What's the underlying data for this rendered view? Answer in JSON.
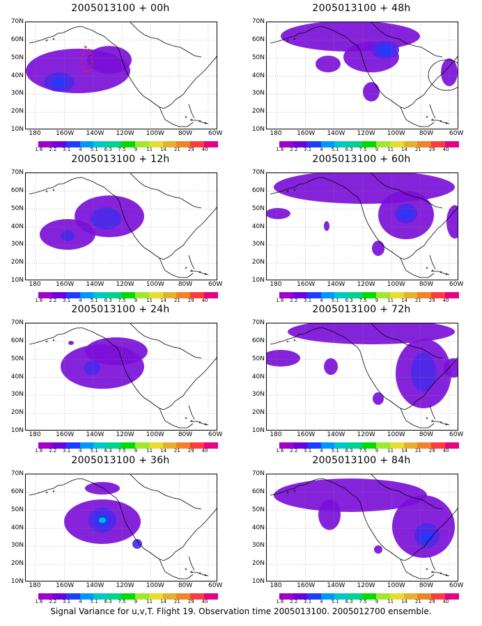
{
  "caption": "Signal Variance for u,v,T. Flight 19. Observation time 2005013100. 2005012700 ensemble.",
  "lat_labels": [
    "70N",
    "60N",
    "50N",
    "40N",
    "30N",
    "20N",
    "10N"
  ],
  "lon_labels": [
    "180",
    "160W",
    "140W",
    "120W",
    "100W",
    "80W",
    "60W"
  ],
  "colorbar": {
    "levels": [
      "1.6",
      "2.2",
      "3.1",
      "4",
      "5.1",
      "6.3",
      "7.5",
      "9",
      "11",
      "14",
      "21",
      "29",
      "40"
    ],
    "colors": [
      "#a000c8",
      "#6e00dc",
      "#1e3cff",
      "#0096ff",
      "#00c8c8",
      "#00d28c",
      "#00dc00",
      "#a0e632",
      "#e6dc32",
      "#e6af2d",
      "#f08228",
      "#fa3c3c",
      "#e60082"
    ]
  },
  "panels": [
    {
      "id": "p00",
      "date": "2005013100",
      "lead": "+ 00h"
    },
    {
      "id": "p48",
      "date": "2005013100",
      "lead": "+ 48h"
    },
    {
      "id": "p12",
      "date": "2005013100",
      "lead": "+ 12h"
    },
    {
      "id": "p60",
      "date": "2005013100",
      "lead": "+ 60h"
    },
    {
      "id": "p24",
      "date": "2005013100",
      "lead": "+ 24h"
    },
    {
      "id": "p72",
      "date": "2005013100",
      "lead": "+ 72h"
    },
    {
      "id": "p36",
      "date": "2005013100",
      "lead": "+ 36h"
    },
    {
      "id": "p84",
      "date": "2005013100",
      "lead": "+ 84h"
    }
  ]
}
